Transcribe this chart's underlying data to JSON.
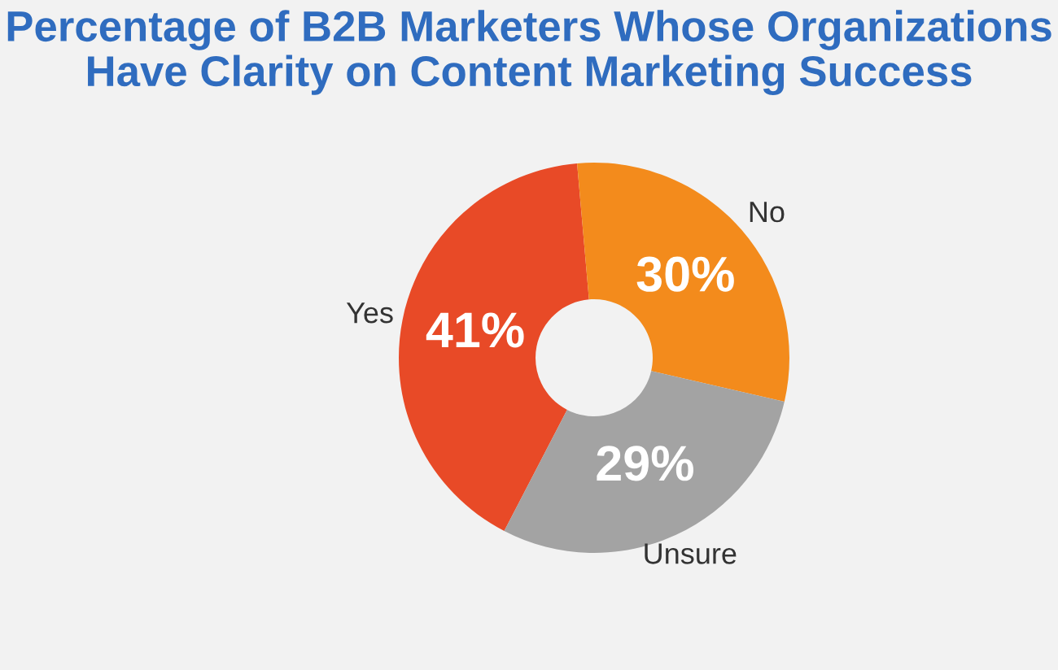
{
  "chart_data": {
    "type": "donut",
    "title": "Percentage of B2B Marketers Whose Organizations\nHave Clarity on Content Marketing Success",
    "categories": [
      "Yes",
      "No",
      "Unsure"
    ],
    "values": [
      41,
      30,
      29
    ],
    "colors": [
      "#e84a27",
      "#f38b1c",
      "#a3a3a3"
    ],
    "value_labels": [
      "41%",
      "30%",
      "29%"
    ]
  }
}
